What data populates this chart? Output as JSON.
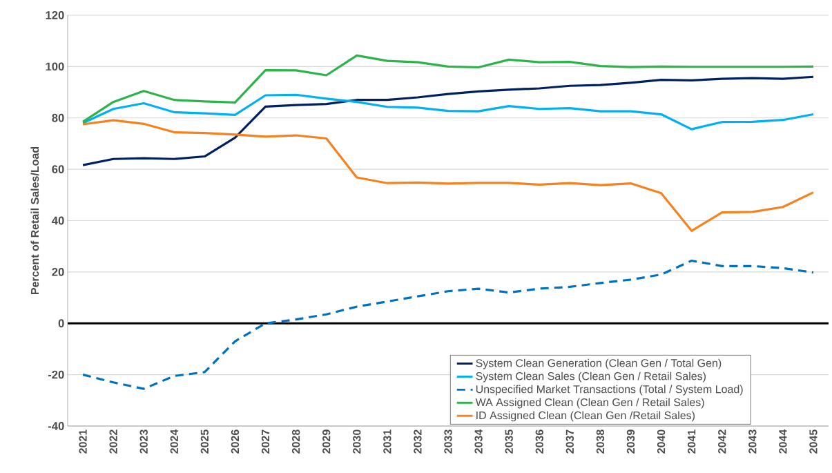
{
  "chart_data": {
    "type": "line",
    "ylabel": "Percent of Retail Sales/Load",
    "categories": [
      "2021",
      "2022",
      "2023",
      "2024",
      "2025",
      "2026",
      "2027",
      "2028",
      "2029",
      "2030",
      "2031",
      "2032",
      "2033",
      "2034",
      "2035",
      "2036",
      "2037",
      "2038",
      "2039",
      "2040",
      "2041",
      "2042",
      "2043",
      "2044",
      "2045"
    ],
    "series": [
      {
        "name": "System Clean Generation (Clean Gen / Total Gen)",
        "color": "#002060",
        "line_style": "solid",
        "values": [
          61.6,
          64,
          64.3,
          64,
          65,
          72.3,
          84.4,
          85,
          85.4,
          87,
          87,
          88,
          89.3,
          90.3,
          91,
          91.5,
          92.5,
          92.8,
          93.7,
          94.8,
          94.6,
          95.2,
          95.5,
          95.2,
          96
        ]
      },
      {
        "name": "System Clean Sales (Clean Gen / Retail Sales)",
        "color": "#00b0f0",
        "line_style": "solid",
        "values": [
          78,
          83.5,
          85.7,
          82.2,
          81.8,
          81.2,
          88.8,
          89,
          87.5,
          86.2,
          84.3,
          84,
          82.7,
          82.6,
          84.6,
          83.5,
          83.8,
          82.6,
          82.6,
          81.4,
          75.6,
          78.4,
          78.5,
          79.2,
          81.4
        ]
      },
      {
        "name": "Unspecified Market Transactions (Total / System Load)",
        "color": "#0070c0",
        "line_style": "dashed",
        "values": [
          -20,
          -23,
          -25.5,
          -20.5,
          -19,
          -7,
          0,
          1.5,
          3.5,
          6.5,
          8.5,
          10.5,
          12.5,
          13.5,
          12,
          13.5,
          14.2,
          15.7,
          17,
          19,
          24.4,
          22.3,
          22.3,
          21.5,
          19.8
        ]
      },
      {
        "name": "WA Assigned Clean (Clean Gen / Retail Sales)",
        "color": "#2db34a",
        "line_style": "solid",
        "values": [
          78.5,
          86.2,
          90.5,
          87,
          86.4,
          86,
          98.6,
          98.5,
          96.6,
          104.3,
          102.2,
          101.7,
          100,
          99.7,
          102.7,
          101.7,
          101.8,
          100.2,
          99.8,
          100,
          99.9,
          99.9,
          99.9,
          99.9,
          100
        ]
      },
      {
        "name": "ID Assigned Clean (Clean Gen /Retail Sales)",
        "color": "#f5821f",
        "line_style": "solid",
        "values": [
          77.5,
          79.1,
          77.7,
          74.4,
          74.1,
          73.5,
          72.7,
          73.2,
          72,
          56.8,
          54.6,
          54.8,
          54.4,
          54.7,
          54.7,
          54,
          54.6,
          53.8,
          54.5,
          50.7,
          36,
          43.2,
          43.4,
          45.3,
          51
        ]
      }
    ],
    "ylim": [
      -40,
      120
    ],
    "yticks": [
      -40,
      -20,
      0,
      20,
      40,
      60,
      80,
      100,
      120
    ],
    "ref_lines": [
      {
        "axis": "y",
        "value": 0,
        "color": "#000000"
      }
    ],
    "grid": "y",
    "legend": "bottom right",
    "marker": "none"
  }
}
